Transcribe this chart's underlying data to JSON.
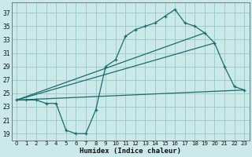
{
  "xlabel": "Humidex (Indice chaleur)",
  "xlim": [
    -0.5,
    23.5
  ],
  "ylim": [
    18.0,
    38.5
  ],
  "xticks": [
    0,
    1,
    2,
    3,
    4,
    5,
    6,
    7,
    8,
    9,
    10,
    11,
    12,
    13,
    14,
    15,
    16,
    17,
    18,
    19,
    20,
    21,
    22,
    23
  ],
  "yticks": [
    19,
    21,
    23,
    25,
    27,
    29,
    31,
    33,
    35,
    37
  ],
  "bg_color": "#cce9e9",
  "grid_color": "#a0cccc",
  "line_color": "#1a6b6b",
  "line1_x": [
    0,
    1,
    2,
    3,
    4,
    5,
    6,
    7,
    8,
    9,
    10,
    11,
    12,
    13,
    14,
    15,
    16,
    17,
    18,
    19,
    20,
    21,
    22,
    23
  ],
  "line1_y": [
    24.0,
    24.0,
    24.0,
    23.5,
    23.5,
    19.5,
    19.0,
    19.0,
    22.5,
    29.0,
    30.0,
    33.5,
    34.5,
    35.0,
    35.5,
    36.5,
    37.5,
    35.5,
    35.0,
    34.0,
    32.5,
    29.0,
    26.0,
    25.5
  ],
  "line2_x": [
    0,
    23
  ],
  "line2_y": [
    24.0,
    25.5
  ],
  "line3_x": [
    0,
    20
  ],
  "line3_y": [
    24.0,
    32.5
  ],
  "line4_x": [
    0,
    23
  ],
  "line4_y": [
    24.0,
    25.5
  ],
  "marker": "+"
}
